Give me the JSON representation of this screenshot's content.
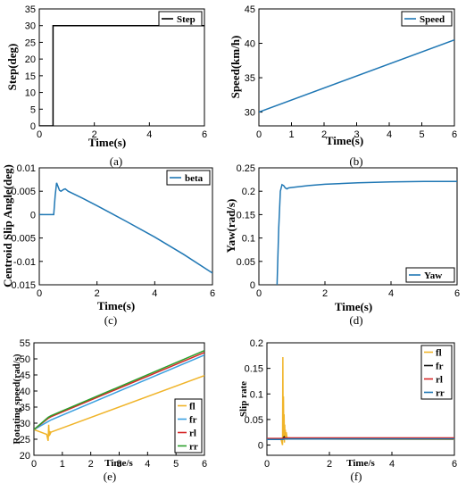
{
  "chart_data": [
    {
      "type": "line",
      "caption": "(a)",
      "xlabel": "Time(s)",
      "ylabel": "Step(deg)",
      "xlim": [
        0,
        6
      ],
      "ylim": [
        0,
        35
      ],
      "xticks": [
        0,
        2,
        4,
        6
      ],
      "yticks": [
        0,
        5,
        10,
        15,
        20,
        25,
        30,
        35
      ],
      "legend_position": "top-right",
      "series": [
        {
          "name": "Step",
          "color": "#000000",
          "x": [
            0,
            0.5,
            0.5,
            6
          ],
          "y": [
            0,
            0,
            30,
            30
          ]
        }
      ]
    },
    {
      "type": "line",
      "caption": "(b)",
      "xlabel": "Time(s)",
      "ylabel": "Speed(km/h)",
      "xlim": [
        0,
        6
      ],
      "ylim": [
        28,
        45
      ],
      "xticks": [
        0,
        1,
        2,
        3,
        4,
        5,
        6
      ],
      "yticks": [
        30,
        35,
        40,
        45
      ],
      "legend_position": "top-right",
      "series": [
        {
          "name": "Speed",
          "color": "#1f77b4",
          "x": [
            0,
            6
          ],
          "y": [
            30,
            40.5
          ]
        }
      ]
    },
    {
      "type": "line",
      "caption": "(c)",
      "xlabel": "Time(s)",
      "ylabel": "Centroid Slip Angle(deg)",
      "xlim": [
        0,
        6
      ],
      "ylim": [
        -0.015,
        0.01
      ],
      "xticks": [
        0,
        2,
        4,
        6
      ],
      "yticks": [
        -0.015,
        -0.01,
        -0.005,
        0,
        0.005,
        0.01
      ],
      "ytick_labels": [
        "-0.015",
        "-0.01",
        "-0.005",
        "0",
        "0.005",
        "0.01"
      ],
      "legend_position": "top-right",
      "series": [
        {
          "name": "beta",
          "color": "#1f77b4",
          "x": [
            0,
            0.5,
            0.55,
            0.6,
            0.65,
            0.7,
            0.75,
            0.85,
            0.9,
            1.0,
            1.5,
            2,
            3,
            4,
            5,
            6
          ],
          "y": [
            0,
            0,
            0.004,
            0.0068,
            0.006,
            0.0052,
            0.005,
            0.0054,
            0.0055,
            0.005,
            0.0035,
            0.0019,
            -0.0014,
            -0.0048,
            -0.0085,
            -0.0125
          ]
        }
      ]
    },
    {
      "type": "line",
      "caption": "(d)",
      "xlabel": "Time(s)",
      "ylabel": "Yaw(rad/s)",
      "xlim": [
        0,
        6
      ],
      "ylim": [
        0,
        0.25
      ],
      "xticks": [
        0,
        2,
        4,
        6
      ],
      "yticks": [
        0,
        0.05,
        0.1,
        0.15,
        0.2,
        0.25
      ],
      "legend_position": "bottom-right",
      "series": [
        {
          "name": "Yaw",
          "color": "#1f77b4",
          "x": [
            0.55,
            0.6,
            0.65,
            0.7,
            0.75,
            0.8,
            0.85,
            0.9,
            1.0,
            1.5,
            2,
            3,
            4,
            5,
            6
          ],
          "y": [
            0,
            0.12,
            0.2,
            0.214,
            0.212,
            0.207,
            0.205,
            0.207,
            0.208,
            0.212,
            0.215,
            0.218,
            0.22,
            0.221,
            0.221
          ]
        }
      ]
    },
    {
      "type": "line",
      "caption": "(e)",
      "xlabel": "Time/s",
      "ylabel": "Rotating speed(rad/s)",
      "xlim": [
        0,
        6
      ],
      "ylim": [
        20,
        55
      ],
      "xticks": [
        0,
        1,
        2,
        3,
        4,
        5,
        6
      ],
      "yticks": [
        20,
        25,
        30,
        35,
        40,
        45,
        50,
        55
      ],
      "legend_position": "bottom-right",
      "series": [
        {
          "name": "fl",
          "color": "#f0b429",
          "x": [
            0,
            0.45,
            0.5,
            0.52,
            0.54,
            0.56,
            0.58,
            0.6,
            6
          ],
          "y": [
            28,
            26.5,
            24.5,
            29.5,
            26,
            27.5,
            26.8,
            27.2,
            44.8
          ]
        },
        {
          "name": "fr",
          "color": "#3aa0e0",
          "x": [
            0,
            0.5,
            0.6,
            6
          ],
          "y": [
            28,
            30.5,
            31,
            51.2
          ]
        },
        {
          "name": "rl",
          "color": "#d62728",
          "x": [
            0,
            0.5,
            0.6,
            6
          ],
          "y": [
            28,
            31.5,
            32,
            52
          ]
        },
        {
          "name": "rr",
          "color": "#2ca02c",
          "x": [
            0,
            0.5,
            0.6,
            6
          ],
          "y": [
            28,
            31.8,
            32.3,
            52.6
          ]
        }
      ]
    },
    {
      "type": "line",
      "caption": "(f)",
      "xlabel": "Time/s",
      "ylabel": "Slip rate",
      "xlim": [
        0,
        6
      ],
      "ylim": [
        -0.02,
        0.2
      ],
      "xticks": [
        0,
        2,
        4,
        6
      ],
      "yticks": [
        0,
        0.05,
        0.1,
        0.15,
        0.2
      ],
      "legend_position": "top-right",
      "series": [
        {
          "name": "fl",
          "color": "#f0b429",
          "x": [
            0,
            0.45,
            0.5,
            0.51,
            0.52,
            0.53,
            0.54,
            0.55,
            0.56,
            0.57,
            0.58,
            0.59,
            0.6,
            0.62,
            0.65,
            0.7,
            1.0,
            6
          ],
          "y": [
            0.012,
            0.012,
            0.0,
            0.172,
            0.01,
            0.095,
            0.02,
            0.06,
            0.005,
            0.04,
            0.012,
            0.03,
            0.015,
            0.025,
            0.012,
            0.014,
            0.012,
            0.011
          ]
        },
        {
          "name": "fr",
          "color": "#111111",
          "x": [
            0,
            0.5,
            0.55,
            0.6,
            6
          ],
          "y": [
            0.012,
            0.012,
            0.016,
            0.012,
            0.012
          ]
        },
        {
          "name": "rl",
          "color": "#d62728",
          "x": [
            0,
            0.5,
            0.6,
            6
          ],
          "y": [
            0.013,
            0.013,
            0.014,
            0.014
          ]
        },
        {
          "name": "rr",
          "color": "#1f77b4",
          "x": [
            0,
            0.5,
            0.6,
            6
          ],
          "y": [
            0.011,
            0.011,
            0.012,
            0.012
          ]
        }
      ]
    }
  ]
}
